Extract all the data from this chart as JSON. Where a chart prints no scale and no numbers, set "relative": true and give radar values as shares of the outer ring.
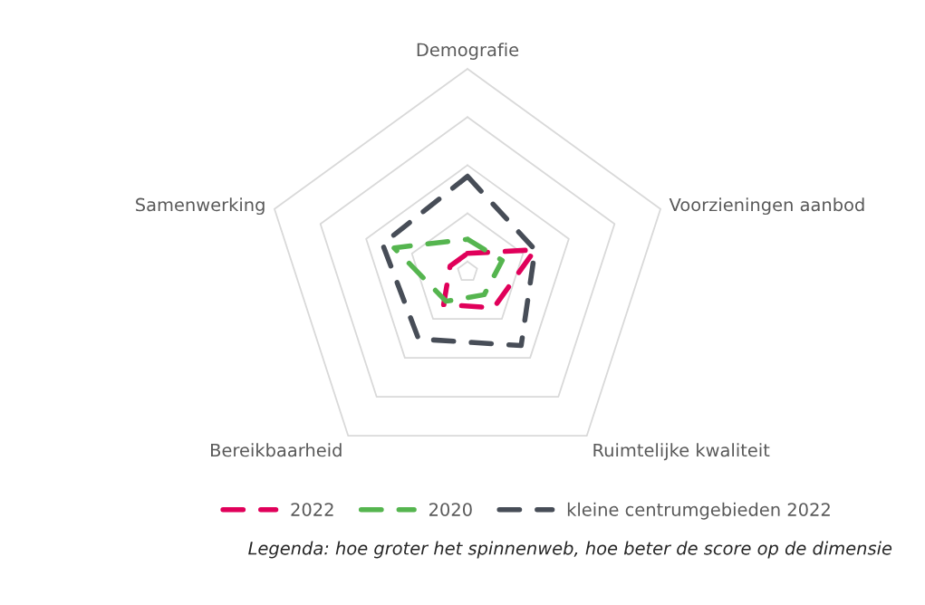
{
  "chart_data": {
    "type": "radar",
    "relative": true,
    "grid": true,
    "legend": "bottom",
    "line_style": "dashed",
    "marker": "none",
    "categories": [
      "Demografie",
      "Voorzieningen aanbod",
      "Ruimtelijke kwaliteit",
      "Bereikbaarheid",
      "Samenwerking"
    ],
    "series": [
      {
        "name": "2022",
        "color": "#e0005a",
        "values": [
          0.09,
          0.35,
          0.22,
          0.2,
          0.09
        ]
      },
      {
        "name": "2020",
        "color": "#55b54f",
        "values": [
          0.16,
          0.18,
          0.14,
          0.18,
          0.38
        ]
      },
      {
        "name": "kleine centrumgebieden 2022",
        "color": "#474d57",
        "values": [
          0.47,
          0.35,
          0.45,
          0.41,
          0.44
        ]
      }
    ],
    "annotations": [
      "Legenda: hoe groter het spinnenweb, hoe beter de score op de dimensie"
    ]
  }
}
